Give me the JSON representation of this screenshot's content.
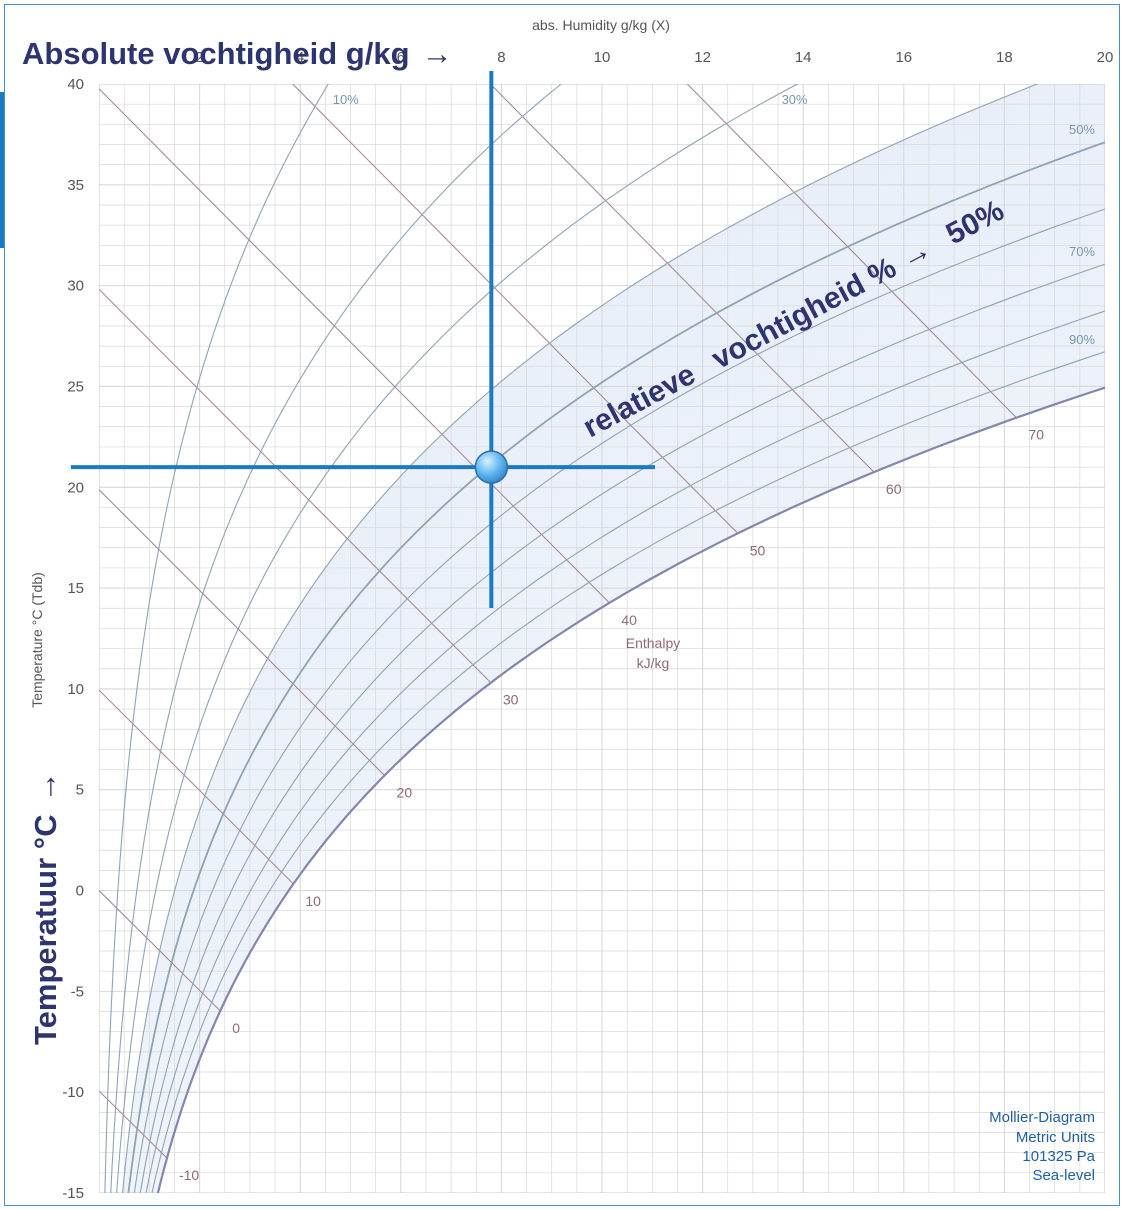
{
  "chart_data": {
    "type": "line",
    "x_axis": {
      "label": "abs. Humidity g/kg (X)",
      "range": [
        0,
        20
      ],
      "ticks": [
        "2",
        "4",
        "6",
        "8",
        "10",
        "12",
        "14",
        "16",
        "18",
        "20"
      ]
    },
    "y_axis": {
      "label": "Temperature °C (Tdb)",
      "range": [
        -15,
        40
      ],
      "ticks": [
        "-15",
        "-10",
        "-5",
        "0",
        "5",
        "10",
        "15",
        "20",
        "25",
        "30",
        "35",
        "40"
      ]
    },
    "relative_humidity_curves": [
      10,
      20,
      30,
      40,
      50,
      60,
      70,
      80,
      90,
      100
    ],
    "relative_humidity_labels": [
      {
        "rh": 10,
        "text": "10%"
      },
      {
        "rh": 30,
        "text": "30%"
      },
      {
        "rh": 50,
        "text": "50%"
      },
      {
        "rh": 70,
        "text": "70%"
      },
      {
        "rh": 90,
        "text": "90%"
      }
    ],
    "enthalpy_lines_kJ_per_kg": [
      -10,
      0,
      10,
      20,
      30,
      40,
      50,
      60,
      70
    ],
    "enthalpy_labels": [
      "-10",
      "0",
      "10",
      "20",
      "30",
      "40",
      "50",
      "60",
      "70"
    ],
    "enthalpy_title": [
      "Enthalpy",
      "kJ/kg"
    ],
    "marked_point": {
      "temperature_c": 21,
      "abs_humidity_g_per_kg": 7.8,
      "relative_humidity_pct": 50
    },
    "pressure_pa": 101325,
    "grid": true
  },
  "annotations": {
    "abs_humidity": "Absolute vochtigheid g/kg",
    "rel_humidity_1": "relatieve",
    "rel_humidity_2": "vochtigheid %",
    "rel_humidity_value": "50%",
    "temperature": "Temperatuur °C"
  },
  "legend": [
    "Mollier-Diagram",
    "Metric Units",
    "101325 Pa",
    "Sea-level"
  ],
  "colors": {
    "rh_line": "#8fa3b5",
    "saturation_line": "#8585ad",
    "enthalpy_line": "#a88a98",
    "grid": "#d8d8d8",
    "marker_lines": "#1a7bc4",
    "annotation_text": "#2e3470"
  }
}
